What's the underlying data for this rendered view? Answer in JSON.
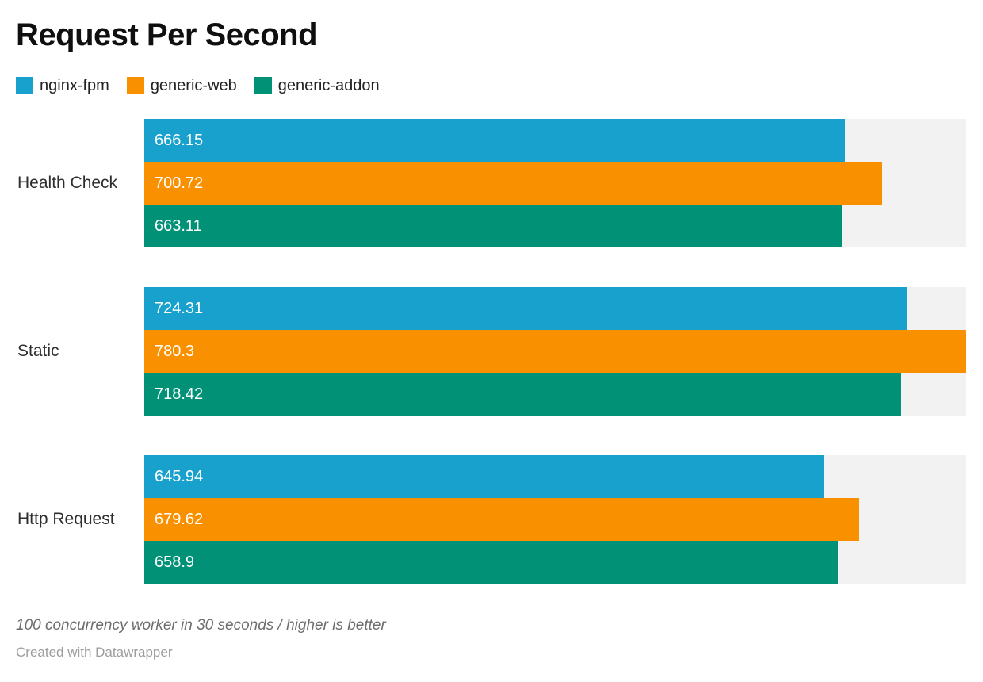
{
  "title": "Request Per Second",
  "chart_data": {
    "type": "bar",
    "orientation": "horizontal",
    "title": "Request Per Second",
    "categories": [
      "Health Check",
      "Static",
      "Http Request"
    ],
    "series": [
      {
        "name": "nginx-fpm",
        "color": "#18a1cd",
        "values": [
          666.15,
          724.31,
          645.94
        ]
      },
      {
        "name": "generic-web",
        "color": "#f99000",
        "values": [
          700.72,
          780.3,
          679.62
        ]
      },
      {
        "name": "generic-addon",
        "color": "#009176",
        "values": [
          663.11,
          718.42,
          658.9
        ]
      }
    ],
    "xlim": [
      0,
      780.3
    ],
    "xlabel": "",
    "ylabel": "",
    "grid": false,
    "legend_position": "top",
    "track_color": "#f2f2f2",
    "value_labels": "inside-start"
  },
  "footer": {
    "note": "100 concurrency worker in 30 seconds / higher is better",
    "credit": "Created with Datawrapper"
  }
}
